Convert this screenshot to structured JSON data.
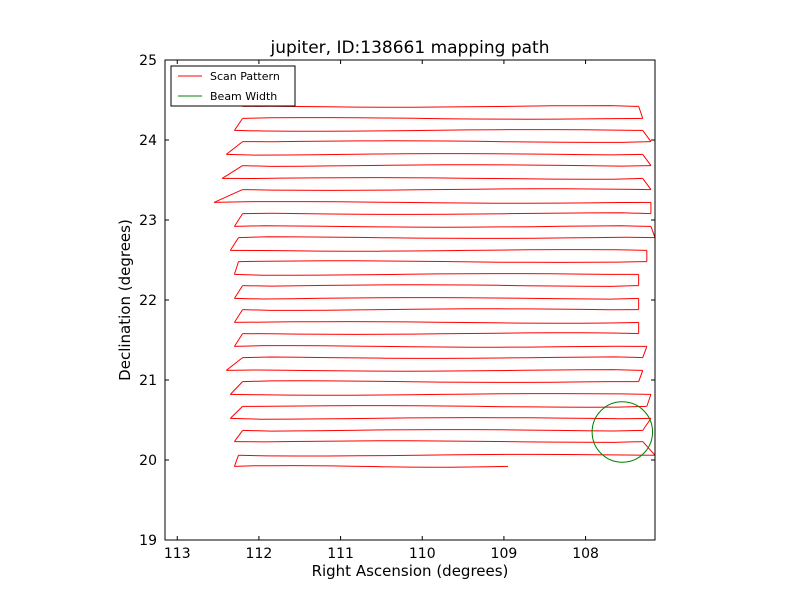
{
  "chart_data": {
    "type": "line",
    "title": "jupiter, ID:138661 mapping path",
    "xlabel": "Right Ascension (degrees)",
    "ylabel": "Declination (degrees)",
    "xlim": [
      113.15,
      107.15
    ],
    "ylim": [
      19,
      25
    ],
    "x_ticks": [
      113,
      112,
      111,
      110,
      109,
      108
    ],
    "y_ticks": [
      19,
      20,
      21,
      22,
      23,
      24,
      25
    ],
    "x_tick_labels": [
      "113",
      "112",
      "111",
      "110",
      "109",
      "108"
    ],
    "y_tick_labels": [
      "19",
      "20",
      "21",
      "22",
      "23",
      "24",
      "25"
    ],
    "grid": false,
    "legend": {
      "position": "top-left",
      "entries": [
        {
          "label": "Scan Pattern",
          "color": "#ff0000"
        },
        {
          "label": "Beam Width",
          "color": "#008000"
        }
      ]
    },
    "series": [
      {
        "name": "Scan Pattern",
        "color": "#ff0000",
        "rows": [
          {
            "y": 19.92,
            "x_start": 108.95,
            "x_end": 112.3
          },
          {
            "y": 20.06,
            "x_start": 112.25,
            "x_end": 107.15
          },
          {
            "y": 20.23,
            "x_start": 107.3,
            "x_end": 112.3
          },
          {
            "y": 20.37,
            "x_start": 112.2,
            "x_end": 107.3
          },
          {
            "y": 20.52,
            "x_start": 107.2,
            "x_end": 112.35
          },
          {
            "y": 20.67,
            "x_start": 112.2,
            "x_end": 107.25
          },
          {
            "y": 20.82,
            "x_start": 107.2,
            "x_end": 112.35
          },
          {
            "y": 20.98,
            "x_start": 112.2,
            "x_end": 107.35
          },
          {
            "y": 21.12,
            "x_start": 107.3,
            "x_end": 112.4
          },
          {
            "y": 21.28,
            "x_start": 112.2,
            "x_end": 107.3
          },
          {
            "y": 21.42,
            "x_start": 107.25,
            "x_end": 112.3
          },
          {
            "y": 21.58,
            "x_start": 112.2,
            "x_end": 107.35
          },
          {
            "y": 21.72,
            "x_start": 107.35,
            "x_end": 112.3
          },
          {
            "y": 21.88,
            "x_start": 112.2,
            "x_end": 107.35
          },
          {
            "y": 22.02,
            "x_start": 107.35,
            "x_end": 112.3
          },
          {
            "y": 22.18,
            "x_start": 112.2,
            "x_end": 107.35
          },
          {
            "y": 22.32,
            "x_start": 107.35,
            "x_end": 112.3
          },
          {
            "y": 22.48,
            "x_start": 112.25,
            "x_end": 107.25
          },
          {
            "y": 22.62,
            "x_start": 107.25,
            "x_end": 112.35
          },
          {
            "y": 22.78,
            "x_start": 112.25,
            "x_end": 107.15
          },
          {
            "y": 22.92,
            "x_start": 107.2,
            "x_end": 112.3
          },
          {
            "y": 23.08,
            "x_start": 112.2,
            "x_end": 107.2
          },
          {
            "y": 23.22,
            "x_start": 107.2,
            "x_end": 112.55
          },
          {
            "y": 23.38,
            "x_start": 112.2,
            "x_end": 107.2
          },
          {
            "y": 23.52,
            "x_start": 107.3,
            "x_end": 112.45
          },
          {
            "y": 23.68,
            "x_start": 112.2,
            "x_end": 107.2
          },
          {
            "y": 23.82,
            "x_start": 107.3,
            "x_end": 112.4
          },
          {
            "y": 23.98,
            "x_start": 112.2,
            "x_end": 107.2
          },
          {
            "y": 24.12,
            "x_start": 107.3,
            "x_end": 112.3
          },
          {
            "y": 24.27,
            "x_start": 112.2,
            "x_end": 107.3
          },
          {
            "y": 24.42,
            "x_start": 107.35,
            "x_end": 112.2
          }
        ]
      }
    ],
    "beam": {
      "name": "Beam Width",
      "color": "#008000",
      "center_ra": 107.55,
      "center_dec": 20.35,
      "radius_deg": 0.37
    }
  }
}
